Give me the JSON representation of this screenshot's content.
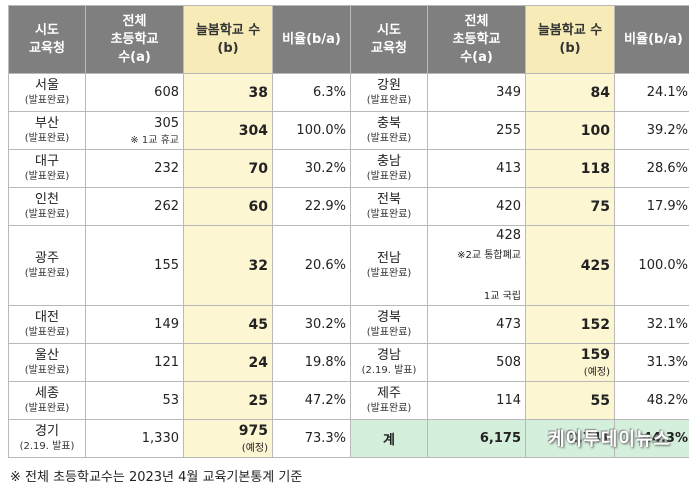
{
  "headers": {
    "region": "시도\n교육청",
    "total": "전체\n초등학교\n수(a)",
    "neulbom": "늘봄학교 수\n(b)",
    "ratio": "비율(b/a)"
  },
  "left_rows": [
    {
      "name": "서울",
      "status": "(발표완료)",
      "total": "608",
      "total_note": "",
      "b": "38",
      "b_note": "",
      "ratio": "6.3%"
    },
    {
      "name": "부산",
      "status": "(발표완료)",
      "total": "305",
      "total_note": "※ 1교 휴교",
      "b": "304",
      "b_note": "",
      "ratio": "100.0%"
    },
    {
      "name": "대구",
      "status": "(발표완료)",
      "total": "232",
      "total_note": "",
      "b": "70",
      "b_note": "",
      "ratio": "30.2%"
    },
    {
      "name": "인천",
      "status": "(발표완료)",
      "total": "262",
      "total_note": "",
      "b": "60",
      "b_note": "",
      "ratio": "22.9%"
    },
    {
      "name": "광주",
      "status": "(발표완료)",
      "total": "155",
      "total_note": "",
      "b": "32",
      "b_note": "",
      "ratio": "20.6%"
    },
    {
      "name": "대전",
      "status": "(발표완료)",
      "total": "149",
      "total_note": "",
      "b": "45",
      "b_note": "",
      "ratio": "30.2%"
    },
    {
      "name": "울산",
      "status": "(발표완료)",
      "total": "121",
      "total_note": "",
      "b": "24",
      "b_note": "",
      "ratio": "19.8%"
    },
    {
      "name": "세종",
      "status": "(발표완료)",
      "total": "53",
      "total_note": "",
      "b": "25",
      "b_note": "",
      "ratio": "47.2%"
    },
    {
      "name": "경기",
      "status": "(2.19. 발표)",
      "total": "1,330",
      "total_note": "",
      "b": "975",
      "b_note": "(예정)",
      "ratio": "73.3%"
    }
  ],
  "right_rows": [
    {
      "name": "강원",
      "status": "(발표완료)",
      "total": "349",
      "b": "84",
      "b_note": "",
      "ratio": "24.1%"
    },
    {
      "name": "충북",
      "status": "(발표완료)",
      "total": "255",
      "b": "100",
      "b_note": "",
      "ratio": "39.2%"
    },
    {
      "name": "충남",
      "status": "(발표완료)",
      "total": "413",
      "b": "118",
      "b_note": "",
      "ratio": "28.6%"
    },
    {
      "name": "전북",
      "status": "(발표완료)",
      "total": "420",
      "b": "75",
      "b_note": "",
      "ratio": "17.9%"
    },
    {
      "name": "전남",
      "status": "(발표완료)",
      "total": "428",
      "total_note1": "※2교 통합폐교",
      "total_note2": "1교 국립",
      "b": "425",
      "b_note": "",
      "ratio": "100.0%"
    },
    {
      "name": "경북",
      "status": "(발표완료)",
      "total": "473",
      "b": "152",
      "b_note": "",
      "ratio": "32.1%"
    },
    {
      "name": "경남",
      "status": "(2.19. 발표)",
      "total": "508",
      "b": "159",
      "b_note": "(예정)",
      "ratio": "31.3%"
    },
    {
      "name": "제주",
      "status": "(발표완료)",
      "total": "114",
      "b": "55",
      "b_note": "",
      "ratio": "48.2%"
    }
  ],
  "total_row": {
    "label": "계",
    "total": "6,175",
    "b": "2,741",
    "ratio": "44.3%"
  },
  "footer": "※ 전체 초등학교수는 2023년 4월 교육기본통계 기준",
  "watermark": "케이투데이뉴스"
}
